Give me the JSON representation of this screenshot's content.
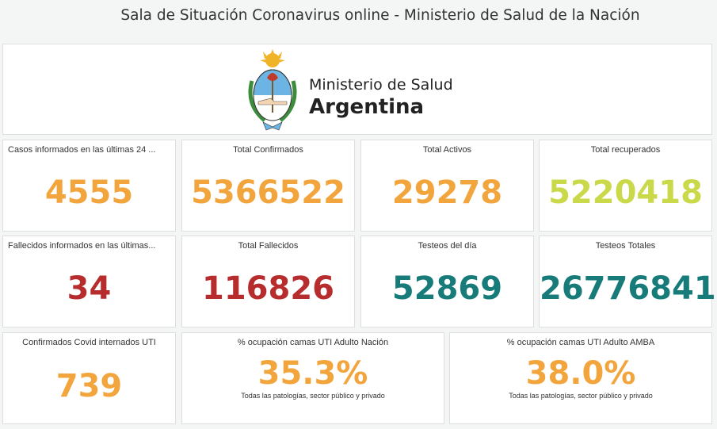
{
  "header": {
    "title": "Sala de Situación Coronavirus online - Ministerio de Salud de la Nación"
  },
  "logo": {
    "line1": "Ministerio de Salud",
    "line2": "Argentina",
    "icon": "argentina-coat-of-arms"
  },
  "colors": {
    "orange": "#f2a53c",
    "lime": "#c9d94a",
    "red": "#b72d2d",
    "teal": "#177c79"
  },
  "cards": [
    {
      "title": "Casos informados en las últimas 24 ...",
      "value": "4555"
    },
    {
      "title": "Total Confirmados",
      "value": "5366522"
    },
    {
      "title": "Total Activos",
      "value": "29278"
    },
    {
      "title": "Total recuperados",
      "value": "5220418"
    },
    {
      "title": "Fallecidos informados en las últimas...",
      "value": "34"
    },
    {
      "title": "Total Fallecidos",
      "value": "116826"
    },
    {
      "title": "Testeos del día",
      "value": "52869"
    },
    {
      "title": "Testeos Totales",
      "value": "26776841"
    },
    {
      "title": "Confirmados Covid internados UTI",
      "value": "739"
    },
    {
      "title": "% ocupación camas UTI Adulto Nación",
      "value": "35.3%",
      "subtitle": "Todas las patologías, sector público y privado"
    },
    {
      "title": "% ocupación camas UTI Adulto AMBA",
      "value": "38.0%",
      "subtitle": "Todas las patologías, sector público y privado"
    }
  ]
}
